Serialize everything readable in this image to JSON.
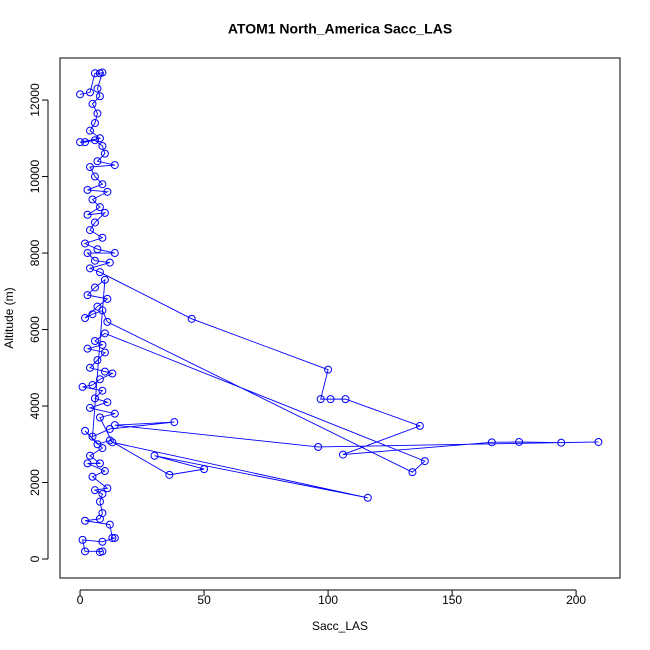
{
  "chart_data": {
    "type": "line",
    "title": "ATOM1 North_America Sacc_LAS",
    "x_label": "Sacc_LAS",
    "y_label": "Altitude (m)",
    "color": "#0000ff",
    "markers": true,
    "xlim": [
      -8.1,
      217.7
    ],
    "xticks": [
      0,
      50,
      100,
      150,
      200
    ],
    "ylim": [
      -497,
      13100
    ],
    "yticks": [
      0,
      2000,
      4000,
      6000,
      8000,
      10000,
      12000
    ],
    "x": [
      0,
      4,
      6,
      8,
      9,
      7,
      8,
      5,
      7,
      6,
      4,
      8,
      0,
      2,
      6,
      9,
      10,
      7,
      14,
      4,
      6,
      9,
      3,
      11,
      5,
      8,
      3,
      10,
      6,
      4,
      9,
      2,
      7,
      14,
      3,
      6,
      12,
      4,
      8,
      45,
      100,
      97,
      101,
      107,
      137,
      106,
      166,
      177,
      194,
      209,
      96,
      14,
      38,
      12,
      5,
      10,
      6,
      3,
      11,
      7,
      2,
      5,
      9,
      11,
      134,
      139,
      10,
      6,
      9,
      3,
      10,
      7,
      4,
      10,
      13,
      8,
      5,
      1,
      9,
      6,
      11,
      4,
      14,
      8,
      13,
      116,
      30,
      50,
      36,
      12,
      7,
      2,
      9,
      4,
      8,
      3,
      10,
      5,
      11,
      6,
      9,
      8,
      9,
      8,
      2,
      12,
      13,
      14,
      9,
      1,
      2,
      9,
      8
    ],
    "values": [
      12150,
      12200,
      12700,
      12700,
      12720,
      12300,
      12100,
      11900,
      11650,
      11400,
      11200,
      11000,
      10900,
      10900,
      10950,
      10800,
      10600,
      10400,
      10300,
      10250,
      10000,
      9800,
      9650,
      9600,
      9400,
      9200,
      9000,
      9050,
      8800,
      8600,
      8400,
      8250,
      8100,
      8000,
      8000,
      7800,
      7750,
      7600,
      7500,
      6280,
      4950,
      4180,
      4180,
      4180,
      3480,
      2730,
      3050,
      3060,
      3040,
      3060,
      2930,
      3500,
      3580,
      3400,
      3200,
      7300,
      7100,
      6900,
      6800,
      6600,
      6300,
      6400,
      6500,
      6200,
      2270,
      2560,
      5900,
      5700,
      5600,
      5500,
      5400,
      5200,
      5000,
      4900,
      4850,
      4700,
      4550,
      4500,
      4400,
      4200,
      4100,
      3950,
      3800,
      3700,
      3050,
      1600,
      2700,
      2350,
      2200,
      3100,
      3000,
      3350,
      2900,
      2700,
      2500,
      2500,
      2300,
      2150,
      1850,
      1800,
      1700,
      1500,
      1200,
      1050,
      1000,
      900,
      550,
      550,
      450,
      500,
      200,
      200,
      180
    ]
  }
}
